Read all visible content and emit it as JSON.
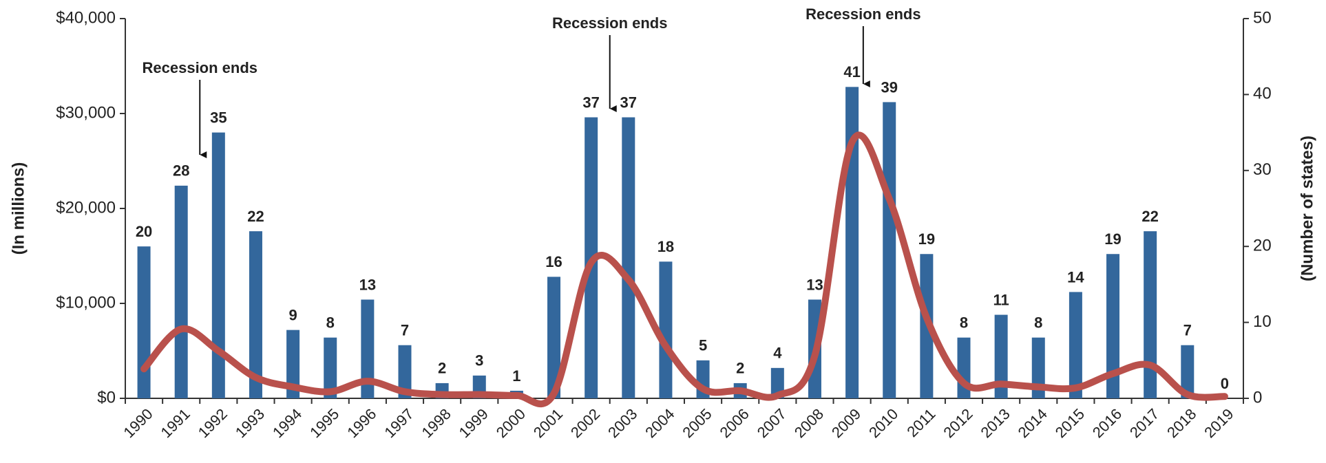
{
  "chart_data": {
    "type": "bar",
    "categories": [
      "1990",
      "1991",
      "1992",
      "1993",
      "1994",
      "1995",
      "1996",
      "1997",
      "1998",
      "1999",
      "2000",
      "2001",
      "2002",
      "2003",
      "2004",
      "2005",
      "2006",
      "2007",
      "2008",
      "2009",
      "2010",
      "2011",
      "2012",
      "2013",
      "2014",
      "2015",
      "2016",
      "2017",
      "2018",
      "2019"
    ],
    "series": [
      {
        "type": "bar",
        "axis": "y2",
        "color": "#33679c",
        "values": [
          20,
          28,
          35,
          22,
          9,
          8,
          13,
          7,
          2,
          3,
          1,
          16,
          37,
          37,
          18,
          5,
          2,
          4,
          13,
          41,
          39,
          19,
          8,
          11,
          8,
          14,
          19,
          22,
          7,
          0
        ]
      },
      {
        "type": "line",
        "axis": "y",
        "color": "#b9514c",
        "values": [
          3100,
          7300,
          5000,
          2200,
          1200,
          700,
          1800,
          700,
          400,
          400,
          300,
          500,
          14300,
          12500,
          5500,
          1000,
          800,
          300,
          4500,
          27000,
          21000,
          8500,
          1600,
          1500,
          1200,
          1100,
          2600,
          3500,
          400,
          200
        ]
      }
    ],
    "annotations": [
      {
        "text": "Recession ends",
        "x": 1991.5
      },
      {
        "text": "Recession ends",
        "x": 2002.5
      },
      {
        "text": "Recession ends",
        "x": 2009.3
      }
    ],
    "ylabel": "(In millions)",
    "y2label": "(Number of states)",
    "ylim": [
      0,
      40000
    ],
    "yticks": [
      {
        "value": 0,
        "label": "$0"
      },
      {
        "value": 10000,
        "label": "$10,000"
      },
      {
        "value": 20000,
        "label": "$20,000"
      },
      {
        "value": 30000,
        "label": "$30,000"
      },
      {
        "value": 40000,
        "label": "$40,000"
      }
    ],
    "y2lim": [
      0,
      50
    ],
    "y2ticks": [
      0,
      10,
      20,
      30,
      40,
      50
    ]
  }
}
